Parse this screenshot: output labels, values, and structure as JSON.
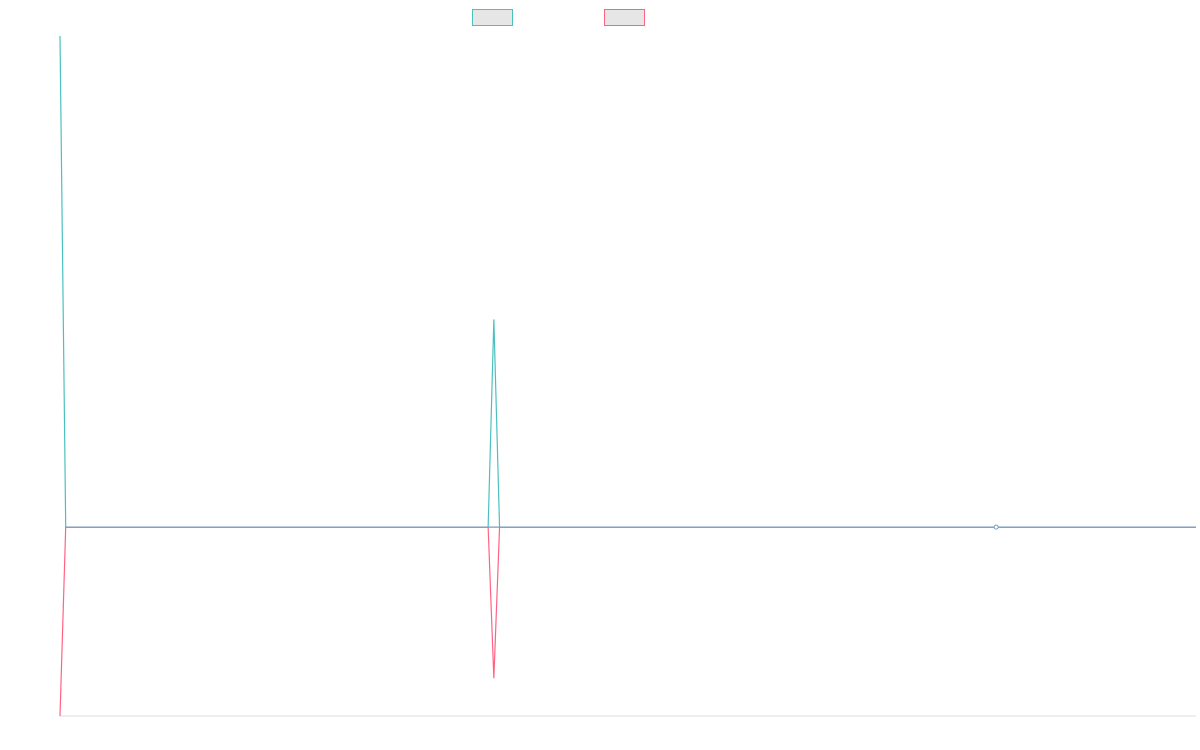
{
  "chart_data": {
    "type": "line",
    "title": "",
    "xlabel": "",
    "ylabel": "",
    "x_range": [
      0,
      199
    ],
    "ylim": [
      -10,
      26
    ],
    "grid": false,
    "legend": "top",
    "series": [
      {
        "name": "",
        "color": "#4bc0c0",
        "fill": "#e6e6e6",
        "points": [
          [
            0,
            26
          ],
          [
            1,
            0
          ],
          [
            75,
            0
          ],
          [
            76,
            11
          ],
          [
            77,
            0
          ],
          [
            199,
            0
          ]
        ]
      },
      {
        "name": "",
        "color": "#ff6384",
        "fill": "#e6e6e6",
        "points": [
          [
            0,
            -10
          ],
          [
            1,
            0
          ],
          [
            75,
            0
          ],
          [
            76,
            -8
          ],
          [
            77,
            0
          ],
          [
            199,
            0
          ]
        ]
      }
    ],
    "marker": {
      "x": 164,
      "y": 0
    }
  }
}
